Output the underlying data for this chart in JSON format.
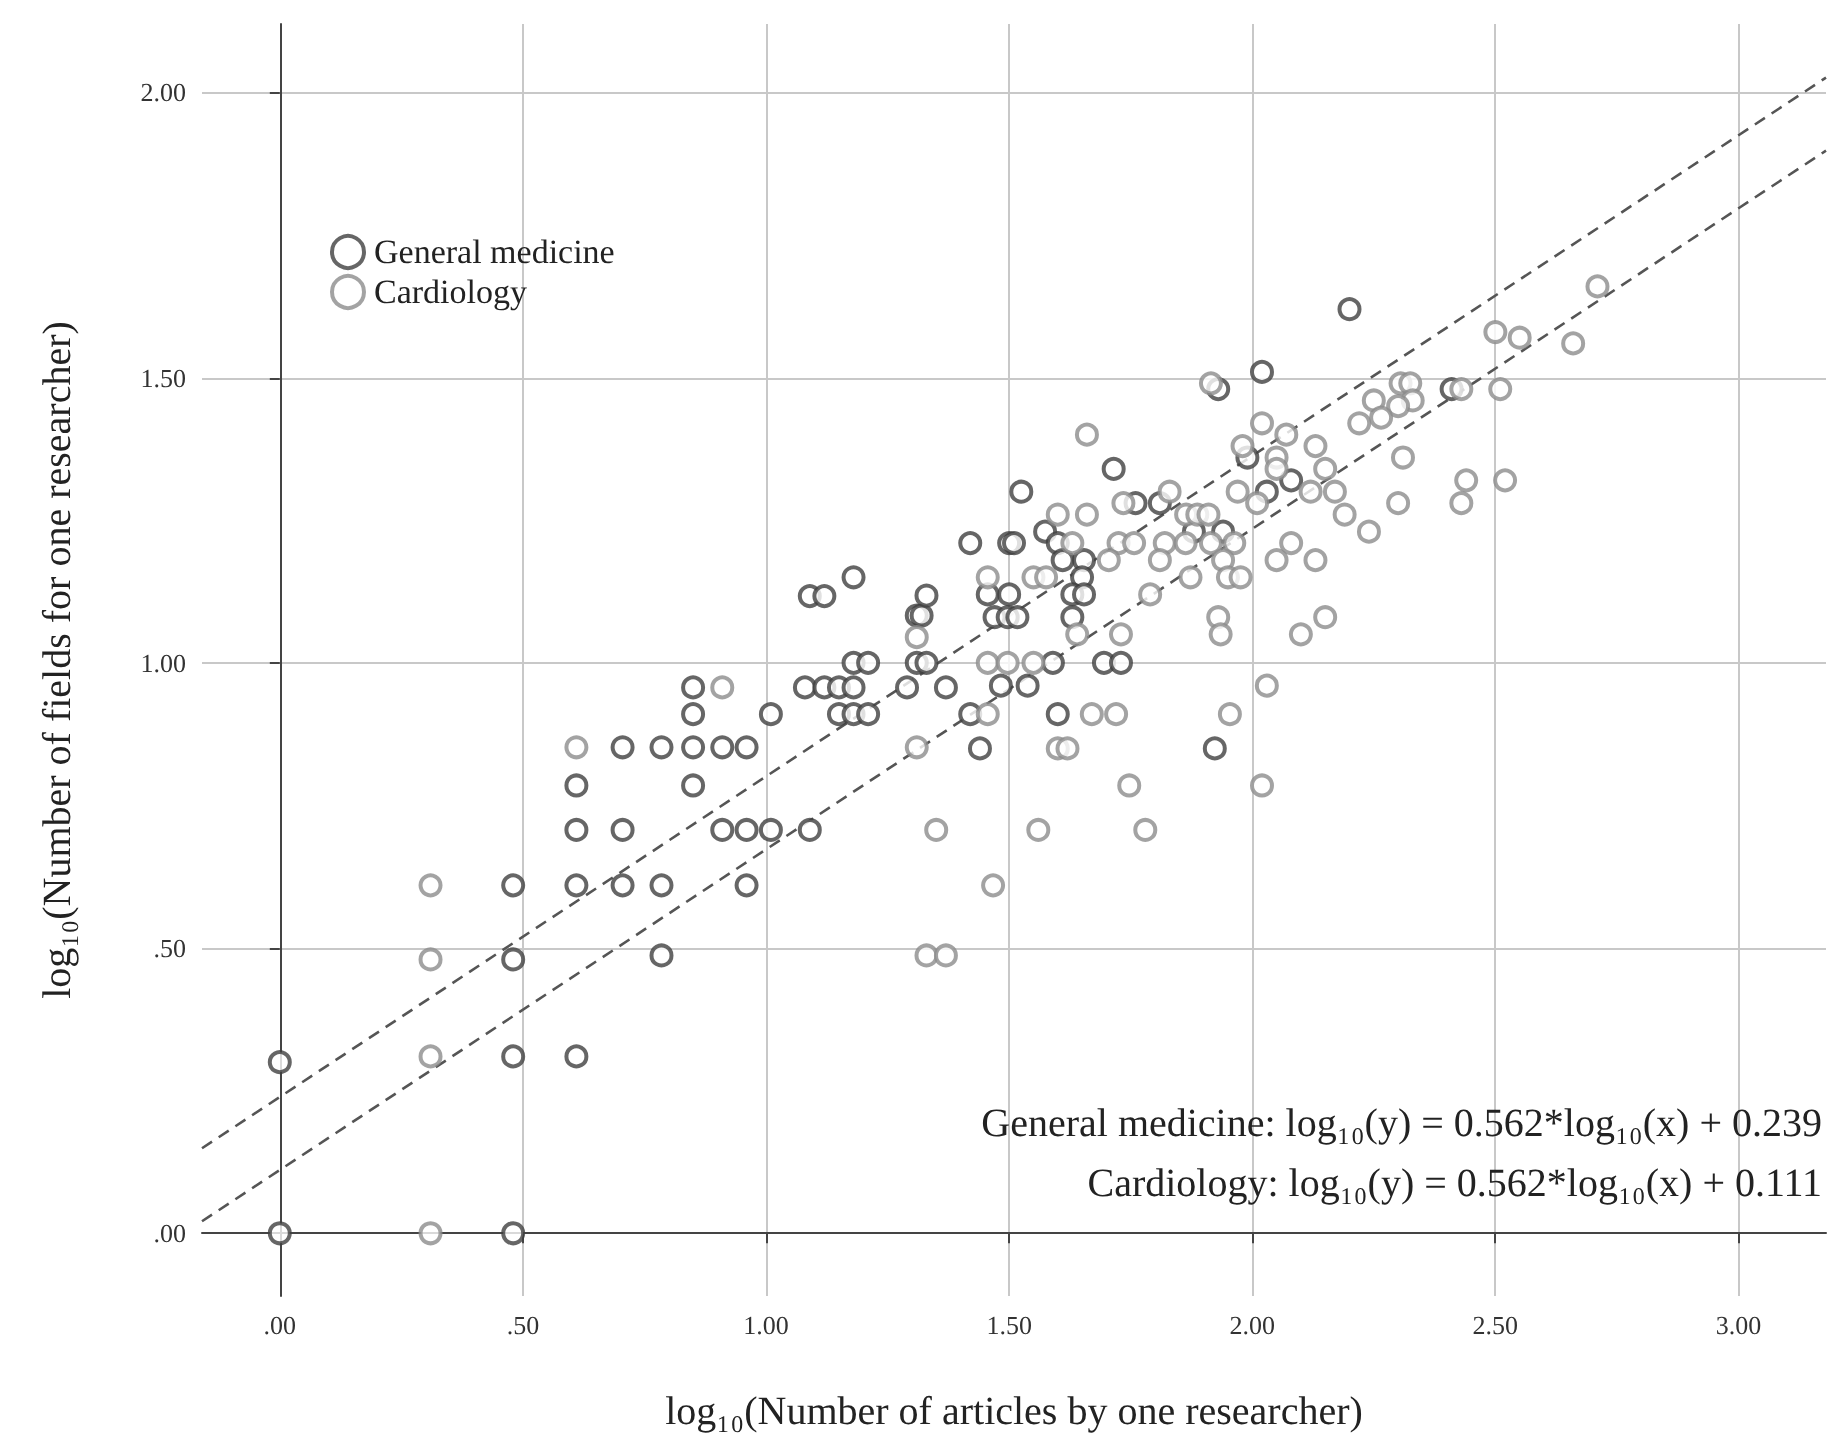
{
  "chart_data": {
    "type": "scatter",
    "xlabel": "log₁₀(Number of articles by one researcher)",
    "ylabel": "log₁₀(Number of fields for one researcher)",
    "xlim": [
      -0.16,
      3.18
    ],
    "ylim": [
      -0.11,
      2.12
    ],
    "xticks": [
      {
        "value": 0,
        "label": ".00"
      },
      {
        "value": 0.5,
        "label": ".50"
      },
      {
        "value": 1,
        "label": "1.00"
      },
      {
        "value": 1.5,
        "label": "1.50"
      },
      {
        "value": 2,
        "label": "2.00"
      },
      {
        "value": 2.5,
        "label": "2.50"
      },
      {
        "value": 3,
        "label": "3.00"
      }
    ],
    "yticks": [
      {
        "value": 0,
        "label": ".00"
      },
      {
        "value": 0.5,
        "label": ".50"
      },
      {
        "value": 1,
        "label": "1.00"
      },
      {
        "value": 1.5,
        "label": "1.50"
      },
      {
        "value": 2,
        "label": "2.00"
      }
    ],
    "grid": true,
    "legend": "top left",
    "marker": "circle",
    "annotations": [
      "General medicine: log₁₀(y) = 0.562*log₁₀(x) + 0.239",
      "Cardiology: log₁₀(y) = 0.562*log₁₀(x) + 0.111"
    ],
    "series": [
      {
        "name": "General medicine",
        "color": "#404040",
        "x": [
          0,
          0,
          0.48,
          0.48,
          0.48,
          0.48,
          0.61,
          0.61,
          0.61,
          0.61,
          0.705,
          0.705,
          0.705,
          0.785,
          0.785,
          0.785,
          0.85,
          0.85,
          0.85,
          0.85,
          0.91,
          0.91,
          0.96,
          0.96,
          0.96,
          1.01,
          1.01,
          1.09,
          1.08,
          1.12,
          1.15,
          1.18,
          1.15,
          1.18,
          1.21,
          1.09,
          1.12,
          1.18,
          1.18,
          1.21,
          1.31,
          1.33,
          1.31,
          1.32,
          1.33,
          1.29,
          1.37,
          2.2,
          1.93,
          2.02,
          2.41,
          1.99,
          1.715,
          2.08,
          1.525,
          2.03,
          1.76,
          1.81,
          1.574,
          1.88,
          1.94,
          1.42,
          1.5,
          1.51,
          1.6,
          1.61,
          1.654,
          1.65,
          1.456,
          1.5,
          1.63,
          1.654,
          1.47,
          1.497,
          1.517,
          1.63,
          1.59,
          1.695,
          1.73,
          1.483,
          1.538,
          1.42,
          1.6,
          1.44,
          1.923
        ],
        "values": [
          0.3,
          0,
          0.61,
          0.48,
          0.31,
          0,
          0.61,
          0.31,
          0.785,
          0.707,
          0.852,
          0.707,
          0.61,
          0.852,
          0.61,
          0.487,
          0.957,
          0.91,
          0.852,
          0.785,
          0.852,
          0.707,
          0.852,
          0.707,
          0.61,
          0.91,
          0.707,
          0.707,
          0.957,
          0.957,
          0.957,
          0.957,
          0.91,
          0.91,
          0.91,
          1.117,
          1.117,
          1.15,
          1.0,
          1.0,
          1.0,
          1.0,
          1.083,
          1.083,
          1.118,
          0.957,
          0.957,
          1.62,
          1.48,
          1.51,
          1.48,
          1.36,
          1.34,
          1.32,
          1.3,
          1.3,
          1.28,
          1.28,
          1.23,
          1.23,
          1.23,
          1.21,
          1.21,
          1.21,
          1.21,
          1.18,
          1.18,
          1.15,
          1.12,
          1.12,
          1.12,
          1.12,
          1.08,
          1.08,
          1.08,
          1.08,
          1.0,
          1.0,
          1.0,
          0.96,
          0.96,
          0.91,
          0.91,
          0.85,
          0.85
        ]
      },
      {
        "name": "Cardiology",
        "color": "#8c8c8c",
        "x": [
          0.31,
          0.31,
          0.31,
          0.31,
          0.61,
          0.91,
          1.31,
          1.31,
          1.35,
          1.33,
          1.37,
          2.71,
          2.5,
          2.55,
          2.66,
          1.915,
          2.305,
          2.325,
          2.43,
          2.51,
          2.25,
          2.33,
          2.3,
          2.265,
          2.22,
          2.02,
          2.07,
          1.66,
          1.98,
          2.13,
          2.05,
          2.31,
          2.05,
          2.15,
          2.44,
          2.52,
          1.83,
          1.97,
          2.12,
          2.17,
          1.735,
          2.01,
          2.3,
          2.43,
          1.6,
          1.66,
          1.864,
          1.887,
          1.91,
          2.19,
          2.24,
          1.63,
          1.725,
          1.757,
          1.82,
          1.863,
          1.915,
          1.963,
          2.08,
          1.705,
          1.81,
          1.94,
          2.05,
          2.13,
          1.456,
          1.55,
          1.576,
          1.873,
          1.95,
          1.976,
          1.79,
          1.93,
          2.15,
          1.64,
          1.73,
          1.935,
          2.1,
          1.456,
          1.497,
          1.55,
          2.03,
          1.456,
          1.67,
          1.72,
          1.954,
          1.6,
          1.62,
          1.747,
          2.02,
          1.56,
          1.78,
          1.467
        ],
        "values": [
          0.61,
          0.48,
          0.31,
          0,
          0.852,
          0.957,
          1.045,
          0.852,
          0.707,
          0.487,
          0.487,
          1.66,
          1.58,
          1.57,
          1.56,
          1.49,
          1.49,
          1.49,
          1.48,
          1.48,
          1.46,
          1.46,
          1.45,
          1.43,
          1.42,
          1.42,
          1.4,
          1.4,
          1.38,
          1.38,
          1.36,
          1.36,
          1.34,
          1.34,
          1.32,
          1.32,
          1.3,
          1.3,
          1.3,
          1.3,
          1.28,
          1.28,
          1.28,
          1.28,
          1.26,
          1.26,
          1.26,
          1.26,
          1.26,
          1.26,
          1.23,
          1.21,
          1.21,
          1.21,
          1.21,
          1.21,
          1.21,
          1.21,
          1.21,
          1.18,
          1.18,
          1.18,
          1.18,
          1.18,
          1.15,
          1.15,
          1.15,
          1.15,
          1.15,
          1.15,
          1.12,
          1.08,
          1.08,
          1.05,
          1.05,
          1.05,
          1.05,
          1.0,
          1.0,
          1.0,
          0.96,
          0.91,
          0.91,
          0.91,
          0.91,
          0.85,
          0.85,
          0.785,
          0.785,
          0.707,
          0.707,
          0.61
        ]
      },
      {
        "type": "line",
        "color": "#555555",
        "line_style": "dashed",
        "marker": "none",
        "x": [
          -0.16,
          3.18
        ],
        "values": [
          0.149,
          2.026
        ]
      },
      {
        "type": "line",
        "color": "#555555",
        "line_style": "dashed",
        "marker": "none",
        "x": [
          -0.16,
          3.18
        ],
        "values": [
          0.021,
          1.898
        ]
      }
    ]
  }
}
